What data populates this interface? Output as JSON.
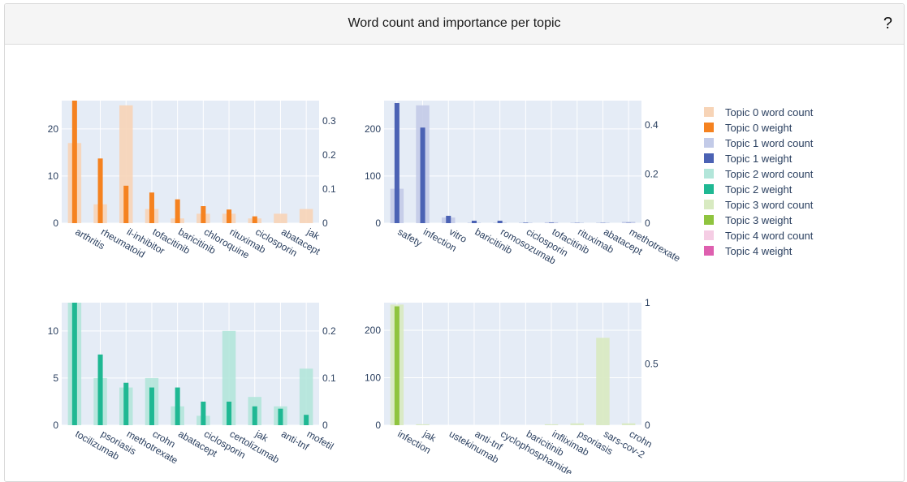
{
  "panel": {
    "title": "Word count and importance per topic",
    "help_label": "?"
  },
  "colors": {
    "plot_bg": "#e5ecf6",
    "grid": "#ffffff",
    "tick_text": "#2a3f5f",
    "topics": [
      {
        "count": "#f7d4b7",
        "weight": "#f58220"
      },
      {
        "count": "#c3cbe8",
        "weight": "#4b62b4"
      },
      {
        "count": "#b3e6da",
        "weight": "#1fb893"
      },
      {
        "count": "#d8eac1",
        "weight": "#8fc43f"
      },
      {
        "count": "#f5cde4",
        "weight": "#de5faf"
      }
    ]
  },
  "legend": [
    {
      "label": "Topic 0 word count",
      "topic": 0,
      "kind": "count"
    },
    {
      "label": "Topic 0 weight",
      "topic": 0,
      "kind": "weight"
    },
    {
      "label": "Topic 1 word count",
      "topic": 1,
      "kind": "count"
    },
    {
      "label": "Topic 1 weight",
      "topic": 1,
      "kind": "weight"
    },
    {
      "label": "Topic 2 word count",
      "topic": 2,
      "kind": "count"
    },
    {
      "label": "Topic 2 weight",
      "topic": 2,
      "kind": "weight"
    },
    {
      "label": "Topic 3 word count",
      "topic": 3,
      "kind": "count"
    },
    {
      "label": "Topic 3 weight",
      "topic": 3,
      "kind": "weight"
    },
    {
      "label": "Topic 4 word count",
      "topic": 4,
      "kind": "count"
    },
    {
      "label": "Topic 4 weight",
      "topic": 4,
      "kind": "weight"
    }
  ],
  "chart_data": [
    {
      "type": "bar",
      "topic": 0,
      "categories": [
        "arthritis",
        "rheumatoid",
        "il-inhibitor",
        "tofacitinib",
        "baricitinib",
        "chloroquine",
        "rituximab",
        "ciclosporin",
        "abatacept",
        "jak"
      ],
      "series": [
        {
          "name": "Topic 0 word count",
          "axis": "left",
          "values": [
            17,
            4,
            25,
            3,
            1,
            2,
            2,
            1,
            2,
            3
          ]
        },
        {
          "name": "Topic 0 weight",
          "axis": "right",
          "values": [
            0.36,
            0.19,
            0.11,
            0.09,
            0.07,
            0.05,
            0.04,
            0.02,
            0.0,
            0.0
          ]
        }
      ],
      "left_ylim": [
        0,
        26
      ],
      "right_ylim": [
        0,
        0.36
      ],
      "left_ticks": [
        0,
        10,
        20
      ],
      "right_ticks": [
        0,
        0.1,
        0.2,
        0.3
      ],
      "left_tick_labels": [
        "0",
        "10",
        "20"
      ],
      "right_tick_labels": [
        "0",
        "0.1",
        "0.2",
        "0.3"
      ]
    },
    {
      "type": "bar",
      "topic": 1,
      "categories": [
        "safety",
        "infection",
        "vitro",
        "baricitinib",
        "romosozumab",
        "ciclosporin",
        "tofacitinib",
        "rituximab",
        "abatacept",
        "methotrexate"
      ],
      "series": [
        {
          "name": "Topic 1 word count",
          "axis": "left",
          "values": [
            73,
            250,
            12,
            1,
            1,
            1,
            2,
            1,
            1,
            3
          ]
        },
        {
          "name": "Topic 1 weight",
          "axis": "right",
          "values": [
            0.49,
            0.39,
            0.03,
            0.01,
            0.01,
            0.002,
            0.002,
            0.001,
            0.001,
            0.001
          ]
        }
      ],
      "left_ylim": [
        0,
        260
      ],
      "right_ylim": [
        0,
        0.5
      ],
      "left_ticks": [
        0,
        100,
        200
      ],
      "right_ticks": [
        0,
        0.2,
        0.4
      ],
      "left_tick_labels": [
        "0",
        "100",
        "200"
      ],
      "right_tick_labels": [
        "0",
        "0.2",
        "0.4"
      ]
    },
    {
      "type": "bar",
      "topic": 2,
      "categories": [
        "tocilizumab",
        "psoriasis",
        "methotrexate",
        "crohn",
        "abatacept",
        "ciclosporin",
        "certolizumab",
        "jak",
        "anti-tnf",
        "mofetil"
      ],
      "series": [
        {
          "name": "Topic 2 word count",
          "axis": "left",
          "values": [
            13,
            5,
            4,
            5,
            2,
            1,
            10,
            3,
            2,
            6
          ]
        },
        {
          "name": "Topic 2 weight",
          "axis": "right",
          "values": [
            0.26,
            0.15,
            0.09,
            0.08,
            0.08,
            0.05,
            0.05,
            0.04,
            0.035,
            0.022
          ]
        }
      ],
      "left_ylim": [
        0,
        13
      ],
      "right_ylim": [
        0,
        0.26
      ],
      "left_ticks": [
        0,
        5,
        10
      ],
      "right_ticks": [
        0,
        0.1,
        0.2
      ],
      "left_tick_labels": [
        "0",
        "5",
        "10"
      ],
      "right_tick_labels": [
        "0",
        "0.1",
        "0.2"
      ]
    },
    {
      "type": "bar",
      "topic": 3,
      "categories": [
        "infection",
        "jak",
        "ustekinumab",
        "anti-tnf",
        "cyclophosphamide",
        "baricitinib",
        "infliximab",
        "psoriasis",
        "sars-cov-2",
        "crohn"
      ],
      "series": [
        {
          "name": "Topic 3 word count",
          "axis": "left",
          "values": [
            254,
            2,
            0,
            0,
            0,
            0,
            2,
            4,
            184,
            4
          ]
        },
        {
          "name": "Topic 3 weight",
          "axis": "right",
          "values": [
            0.97,
            0.0,
            0.0,
            0.0,
            0.0,
            0.0,
            0.0,
            0.0,
            0.0,
            0.0
          ]
        }
      ],
      "left_ylim": [
        0,
        258
      ],
      "right_ylim": [
        0,
        1
      ],
      "left_ticks": [
        0,
        100,
        200
      ],
      "right_ticks": [
        0,
        0.5,
        1
      ],
      "left_tick_labels": [
        "0",
        "100",
        "200"
      ],
      "right_tick_labels": [
        "0",
        "0.5",
        "1"
      ]
    }
  ]
}
